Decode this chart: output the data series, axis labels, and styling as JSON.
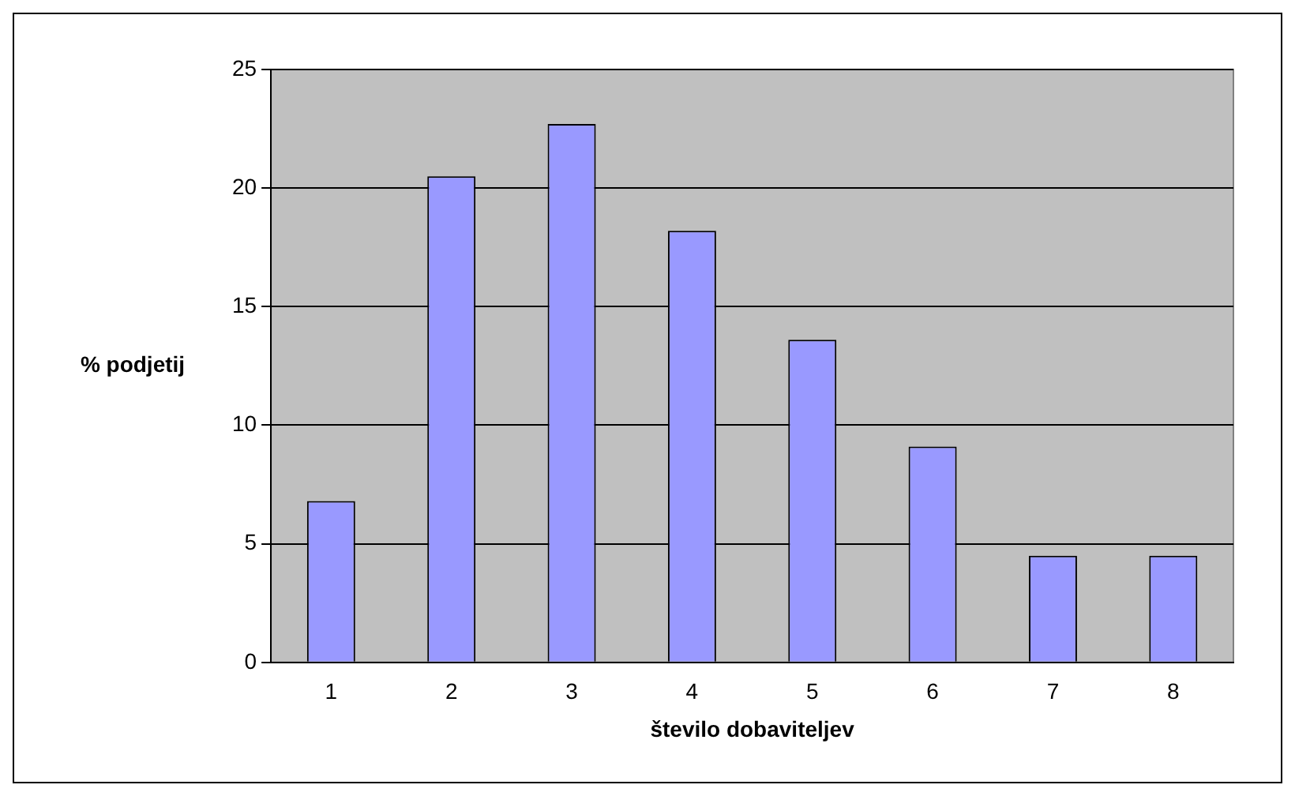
{
  "chart_data": {
    "type": "bar",
    "xlabel": "število dobaviteljev",
    "ylabel": "% podjetij",
    "categories": [
      "1",
      "2",
      "3",
      "4",
      "5",
      "6",
      "7",
      "8"
    ],
    "values": [
      6.8,
      20.5,
      22.7,
      18.2,
      13.6,
      9.1,
      4.5,
      4.5
    ],
    "color": "#9999ff",
    "ylim": [
      0,
      25
    ],
    "yticks": [
      0,
      5,
      10,
      15,
      20,
      25
    ],
    "grid": "y",
    "legend": false
  }
}
